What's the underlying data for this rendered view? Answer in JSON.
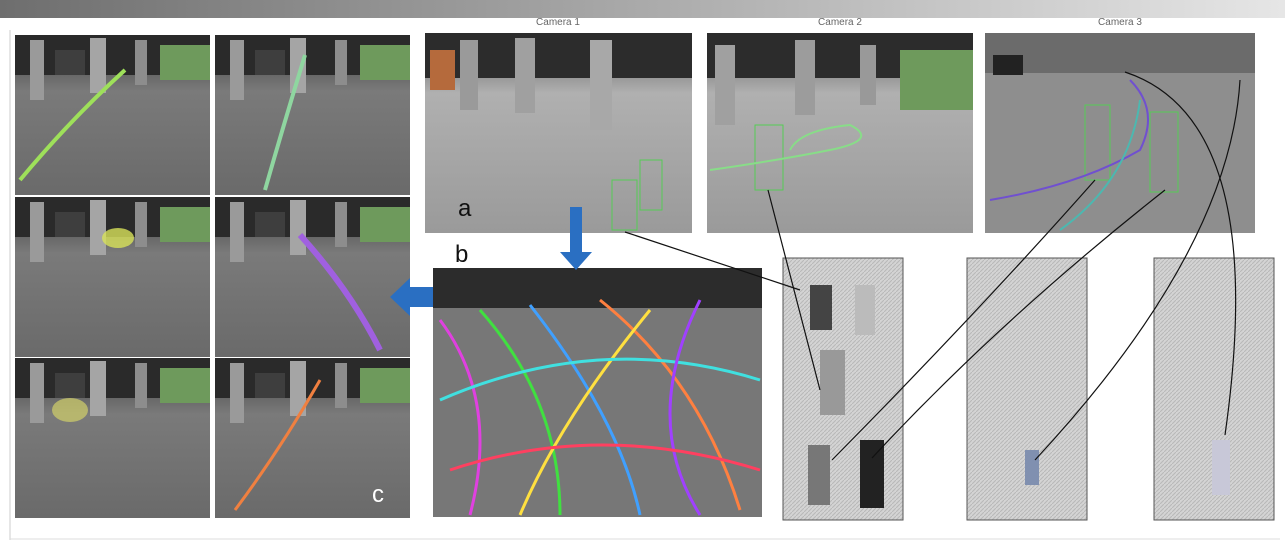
{
  "camera_titles": [
    "Camera 1",
    "Camera 2",
    "Camera 3"
  ],
  "panel_labels": [
    "a",
    "b",
    "c"
  ]
}
